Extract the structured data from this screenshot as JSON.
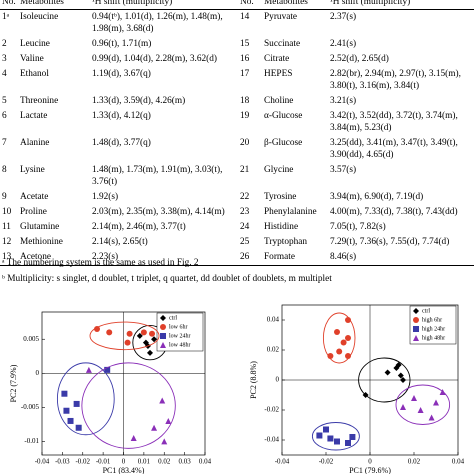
{
  "table": {
    "header": [
      "No.",
      "Metabolites",
      "¹H shift (multiplicity)",
      "No.",
      "Metabolites",
      "¹H shift (multiplicity)"
    ],
    "rows": [
      [
        "1ᵃ",
        "Isoleucine",
        "0.94(tᵇ), 1.01(d), 1.26(m), 1.48(m), 1.98(m), 3.68(d)",
        "14",
        "Pyruvate",
        "2.37(s)"
      ],
      [
        "2",
        "Leucine",
        "0.96(t), 1.71(m)",
        "15",
        "Succinate",
        "2.41(s)"
      ],
      [
        "3",
        "Valine",
        "0.99(d), 1.04(d), 2.28(m), 3.62(d)",
        "16",
        "Citrate",
        "2.52(d), 2.65(d)"
      ],
      [
        "4",
        "Ethanol",
        "1.19(d), 3.67(q)",
        "17",
        "HEPES",
        "2.82(br), 2.94(m), 2.97(t), 3.15(m), 3.80(t), 3.16(m), 3.84(t)"
      ],
      [
        "5",
        "Threonine",
        "1.33(d), 3.59(d), 4.26(m)",
        "18",
        "Choline",
        "3.21(s)"
      ],
      [
        "6",
        "Lactate",
        "1.33(d), 4.12(q)",
        "19",
        "α-Glucose",
        "3.42(t), 3.52(dd), 3.72(t), 3.74(m), 3.84(m), 5.23(d)"
      ],
      [
        "7",
        "Alanine",
        "1.48(d), 3.77(q)",
        "20",
        "β-Glucose",
        "3.25(dd), 3.41(m), 3.47(t), 3.49(t), 3.90(dd), 4.65(d)"
      ],
      [
        "8",
        "Lysine",
        "1.48(m), 1.73(m), 1.91(m), 3.03(t), 3.76(t)",
        "21",
        "Glycine",
        "3.57(s)"
      ],
      [
        "9",
        "Acetate",
        "1.92(s)",
        "22",
        "Tyrosine",
        "3.94(m), 6.90(d), 7.19(d)"
      ],
      [
        "10",
        "Proline",
        "2.03(m), 2.35(m), 3.38(m), 4.14(m)",
        "23",
        "Phenylalanine",
        "4.00(m), 7.33(d), 7.38(t), 7.43(dd)"
      ],
      [
        "11",
        "Glutamine",
        "2.14(m), 2.46(m), 3.77(t)",
        "24",
        "Histidine",
        "7.05(t), 7.82(s)"
      ],
      [
        "12",
        "Methionine",
        "2.14(s), 2.65(t)",
        "25",
        "Tryptophan",
        "7.29(t), 7.36(s), 7.55(d), 7.74(d)"
      ],
      [
        "13",
        "Acetone",
        "2.23(s)",
        "26",
        "Formate",
        "8.46(s)"
      ]
    ]
  },
  "footnotes": [
    "ᵃ The numbering system is the same as used in Fig. 2",
    "ᵇ Multiplicity: s singlet, d doublet, t triplet, q quartet, dd doublet of doublets, m multiplet"
  ],
  "chart_data": [
    {
      "type": "scatter",
      "xlabel": "PC1 (83.4%)",
      "ylabel": "PC2 (7.9%)",
      "xlim": [
        -0.04,
        0.04
      ],
      "xticks": [
        -0.04,
        -0.03,
        -0.02,
        -0.01,
        0,
        0.01,
        0.02,
        0.03,
        0.04
      ],
      "ylim": [
        -0.012,
        0.009
      ],
      "yticks": [
        -0.01,
        -0.005,
        0,
        0.005
      ],
      "legend": "upper right",
      "series": [
        {
          "name": "ctrl",
          "color": "#000000",
          "marker": "diamond",
          "x": [
            0.008,
            0.012,
            0.013,
            0.015,
            0.011,
            0.018
          ],
          "values": [
            0.0055,
            0.004,
            0.003,
            0.005,
            0.0045,
            0.006
          ]
        },
        {
          "name": "low 6hr",
          "color": "#e0402a",
          "marker": "circle",
          "x": [
            -0.013,
            0.003,
            0.01,
            0.014,
            0.002,
            -0.007
          ],
          "values": [
            0.0065,
            0.0058,
            0.006,
            0.0058,
            0.0045,
            0.006
          ]
        },
        {
          "name": "low 24hr",
          "color": "#3a3aa8",
          "marker": "square",
          "x": [
            -0.023,
            -0.028,
            -0.026,
            -0.022,
            -0.029,
            -0.008
          ],
          "values": [
            -0.0045,
            -0.0055,
            -0.007,
            -0.008,
            -0.003,
            0.0005
          ]
        },
        {
          "name": "low 48hr",
          "color": "#8a2fb8",
          "marker": "triangle",
          "x": [
            0.005,
            0.015,
            0.02,
            0.022,
            -0.017,
            0.019
          ],
          "values": [
            -0.0095,
            -0.008,
            -0.01,
            -0.007,
            0.0005,
            -0.004
          ]
        }
      ]
    },
    {
      "type": "scatter",
      "xlabel": "PC1 (79.6%)",
      "ylabel": "PC2 (8.8%)",
      "xlim": [
        -0.04,
        0.04
      ],
      "xticks": [
        -0.04,
        -0.02,
        0,
        0.02,
        0.04
      ],
      "ylim": [
        -0.05,
        0.05
      ],
      "yticks": [
        -0.04,
        -0.02,
        0,
        0.02,
        0.04
      ],
      "legend": "upper right",
      "series": [
        {
          "name": "ctrl",
          "color": "#000000",
          "marker": "diamond",
          "x": [
            0.012,
            0.013,
            0.015,
            0.008,
            -0.002,
            0.014
          ],
          "values": [
            0.008,
            0.01,
            0.0,
            0.005,
            -0.01,
            0.003
          ]
        },
        {
          "name": "high 6hr",
          "color": "#e0402a",
          "marker": "circle",
          "x": [
            -0.015,
            -0.012,
            -0.01,
            -0.014,
            -0.018,
            -0.01,
            -0.01
          ],
          "values": [
            0.032,
            0.025,
            0.028,
            0.019,
            0.016,
            0.016,
            0.04
          ]
        },
        {
          "name": "high 24hr",
          "color": "#3a3aa8",
          "marker": "square",
          "x": [
            -0.023,
            -0.018,
            -0.015,
            -0.01,
            -0.008,
            -0.02
          ],
          "values": [
            -0.037,
            -0.039,
            -0.041,
            -0.042,
            -0.038,
            -0.033
          ]
        },
        {
          "name": "high 48hr",
          "color": "#8a2fb8",
          "marker": "triangle",
          "x": [
            0.02,
            0.023,
            0.03,
            0.028,
            0.033,
            0.015
          ],
          "values": [
            -0.012,
            -0.02,
            -0.015,
            -0.025,
            -0.008,
            -0.018
          ]
        }
      ]
    }
  ]
}
